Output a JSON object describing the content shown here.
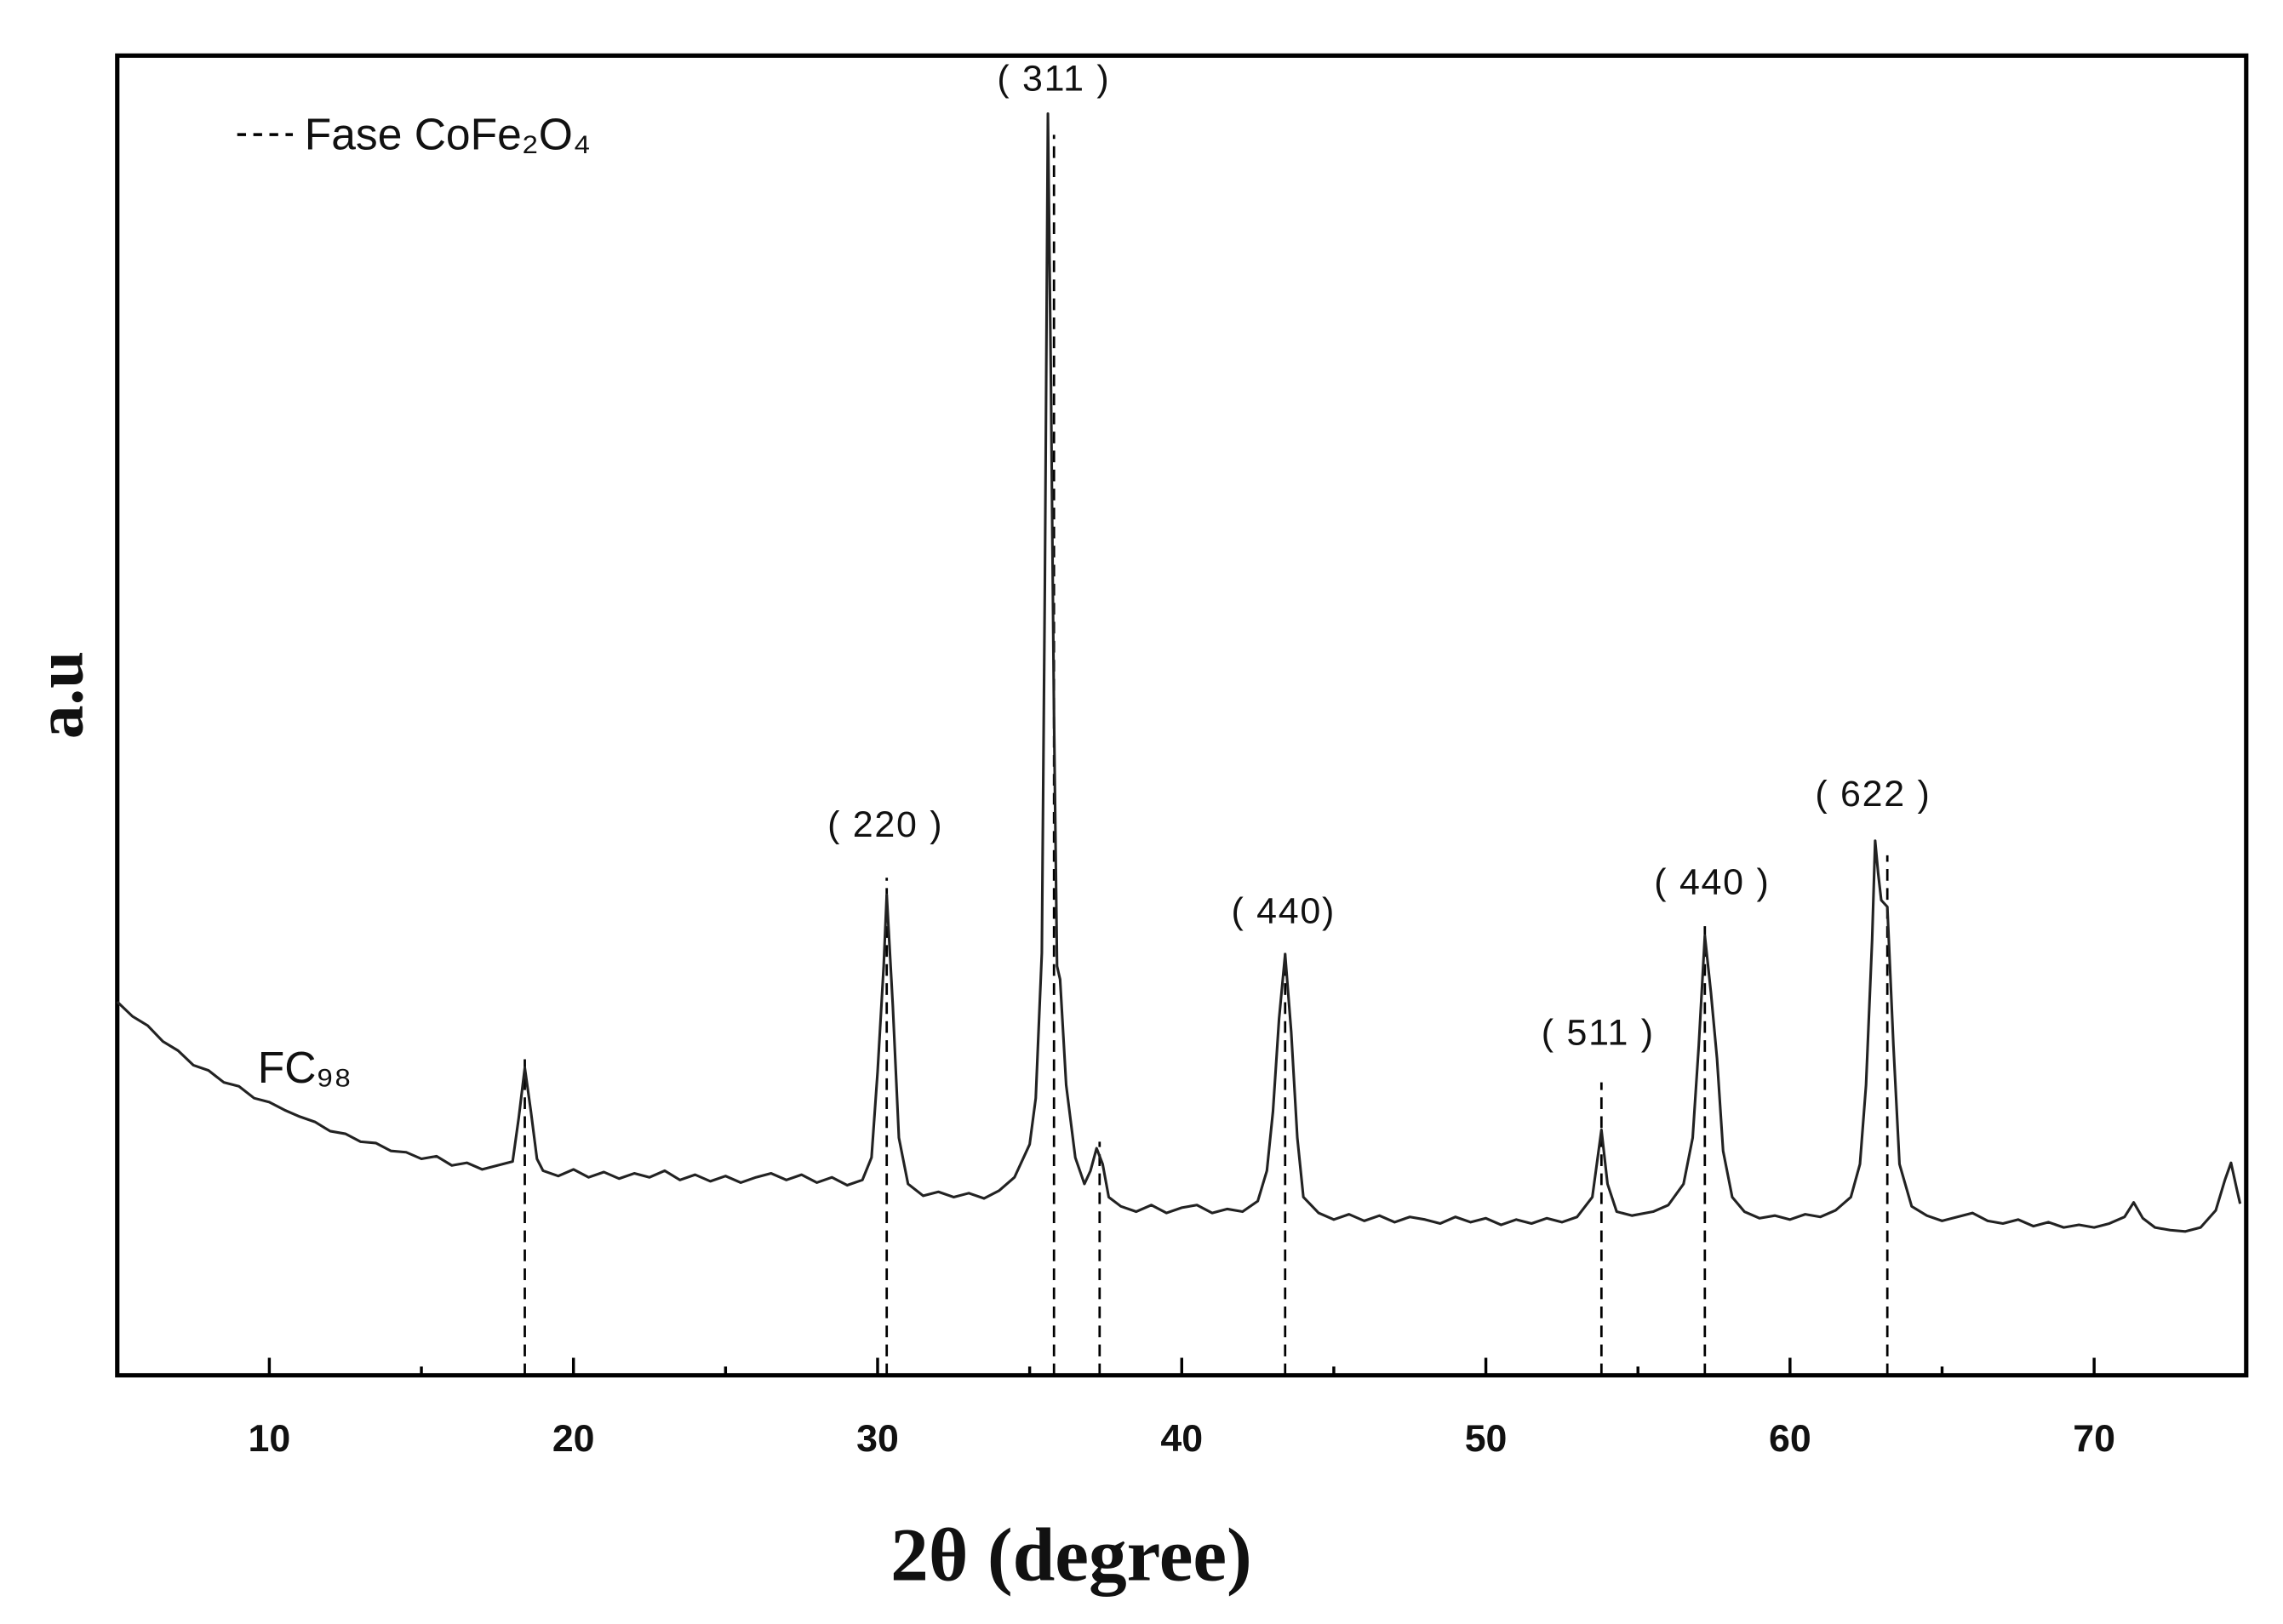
{
  "chart_data": {
    "type": "line",
    "x_label": "2θ (degree)",
    "y_label": "a.u",
    "xlim": [
      5,
      75
    ],
    "ylim": [
      0,
      100
    ],
    "xticks": [
      10,
      20,
      30,
      40,
      50,
      60,
      70
    ],
    "xminorticks": [
      15,
      25,
      35,
      45,
      55,
      65
    ],
    "series": [
      {
        "name": "FC₉₈",
        "color": "#222222",
        "x": [
          5,
          5.5,
          6,
          6.5,
          7,
          7.5,
          8,
          8.5,
          9,
          9.5,
          10,
          10.5,
          11,
          11.5,
          12,
          12.5,
          13,
          13.5,
          14,
          14.5,
          15,
          15.5,
          16,
          16.5,
          17,
          17.5,
          18,
          18.2,
          18.4,
          18.6,
          18.8,
          19,
          19.5,
          20,
          20.5,
          21,
          21.5,
          22,
          22.5,
          23,
          23.5,
          24,
          24.5,
          25,
          25.5,
          26,
          26.5,
          27,
          27.5,
          28,
          28.5,
          29,
          29.5,
          29.8,
          30,
          30.2,
          30.3,
          30.5,
          30.7,
          31,
          31.5,
          32,
          32.5,
          33,
          33.5,
          34,
          34.5,
          35,
          35.2,
          35.4,
          35.5,
          35.6,
          35.7,
          35.8,
          35.9,
          36,
          36.2,
          36.5,
          36.8,
          37,
          37.2,
          37.4,
          37.6,
          38,
          38.5,
          39,
          39.5,
          40,
          40.5,
          41,
          41.5,
          42,
          42.5,
          42.8,
          43,
          43.2,
          43.4,
          43.6,
          43.8,
          44,
          44.5,
          45,
          45.5,
          46,
          46.5,
          47,
          47.5,
          48,
          48.5,
          49,
          49.5,
          50,
          50.5,
          51,
          51.5,
          52,
          52.5,
          53,
          53.5,
          53.8,
          54,
          54.3,
          54.8,
          55.5,
          56,
          56.5,
          56.8,
          57,
          57.2,
          57.4,
          57.6,
          57.8,
          58.1,
          58.5,
          59,
          59.5,
          60,
          60.5,
          61,
          61.5,
          62,
          62.3,
          62.5,
          62.7,
          62.8,
          62.9,
          63,
          63.2,
          63.4,
          63.6,
          64,
          64.5,
          65,
          65.5,
          66,
          66.5,
          67,
          67.5,
          68,
          68.5,
          69,
          69.5,
          70,
          70.5,
          71,
          71.3,
          71.6,
          72,
          72.5,
          73,
          73.5,
          74,
          74.3,
          74.5,
          74.7,
          74.8
        ],
        "values": [
          28.3,
          27.2,
          26.5,
          25.3,
          24.6,
          23.5,
          23.1,
          22.2,
          21.9,
          21.0,
          20.7,
          20.1,
          19.6,
          19.2,
          18.5,
          18.3,
          17.7,
          17.6,
          17.0,
          16.9,
          16.4,
          16.6,
          15.9,
          16.1,
          15.6,
          15.9,
          16.2,
          19.5,
          23.3,
          20.0,
          16.4,
          15.5,
          15.1,
          15.6,
          15.0,
          15.4,
          14.9,
          15.3,
          15.0,
          15.5,
          14.8,
          15.2,
          14.7,
          15.1,
          14.6,
          15.0,
          15.3,
          14.8,
          15.2,
          14.6,
          15.0,
          14.4,
          14.8,
          16.5,
          23,
          31,
          36.4,
          28,
          18,
          14.5,
          13.6,
          13.9,
          13.5,
          13.8,
          13.4,
          14.0,
          15.0,
          17.5,
          21,
          32,
          60,
          95.6,
          75,
          50,
          31,
          30,
          22,
          16.5,
          14.5,
          15.5,
          17.2,
          16,
          13.5,
          12.8,
          12.4,
          12.9,
          12.3,
          12.7,
          12.9,
          12.3,
          12.6,
          12.4,
          13.2,
          15.5,
          20,
          27,
          31.9,
          26,
          18,
          13.5,
          12.3,
          11.8,
          12.2,
          11.7,
          12.1,
          11.6,
          12.0,
          11.8,
          11.5,
          12.0,
          11.6,
          11.9,
          11.4,
          11.8,
          11.5,
          11.9,
          11.6,
          12.0,
          13.5,
          18.6,
          14.5,
          12.4,
          12.1,
          12.4,
          12.9,
          14.5,
          18,
          25,
          33.3,
          29,
          24,
          17,
          13.5,
          12.4,
          11.9,
          12.1,
          11.8,
          12.2,
          12.0,
          12.5,
          13.5,
          16,
          22,
          33,
          40.5,
          38,
          36,
          35.5,
          25,
          16,
          12.8,
          12.1,
          11.7,
          12.0,
          12.3,
          11.7,
          11.5,
          11.8,
          11.3,
          11.6,
          11.2,
          11.4,
          11.2,
          11.5,
          12.0,
          13.1,
          11.9,
          11.2,
          11.0,
          10.9,
          11.2,
          12.5,
          14.8,
          16.1,
          14,
          13
        ]
      }
    ],
    "phase_lines": {
      "name": "Fase CoFe₂O₄",
      "x": [
        18.4,
        30.3,
        35.8,
        37.3,
        43.4,
        53.8,
        57.2,
        63.2
      ],
      "values": [
        24.4,
        37.7,
        94,
        17.7,
        32,
        22.2,
        34.4,
        39.4
      ]
    },
    "annotations": [
      "( 311 )",
      "( 220 )",
      "( 440)",
      "( 511 )",
      "( 440 )",
      "( 622 )"
    ]
  }
}
